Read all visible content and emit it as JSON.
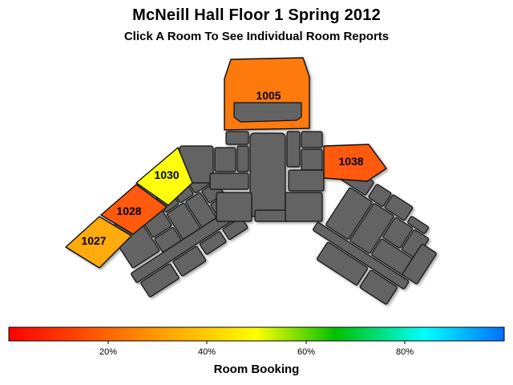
{
  "title": "McNeill Hall Floor 1 Spring 2012",
  "subtitle": "Click A Room To See Individual Room Reports",
  "rooms": [
    {
      "id": "1005",
      "label": "1005",
      "color": "#ff7a10"
    },
    {
      "id": "1038",
      "label": "1038",
      "color": "#ff5a10"
    },
    {
      "id": "1030",
      "label": "1030",
      "color": "#ffff10"
    },
    {
      "id": "1028",
      "label": "1028",
      "color": "#ff5a10"
    },
    {
      "id": "1027",
      "label": "1027",
      "color": "#ffaa10"
    }
  ],
  "legend": {
    "title": "Room Booking",
    "ticks": [
      "20%",
      "40%",
      "60%",
      "80%"
    ],
    "gradient": [
      "#ff0000",
      "#ffff00",
      "#00c000",
      "#00ffff",
      "#0070ff"
    ]
  }
}
